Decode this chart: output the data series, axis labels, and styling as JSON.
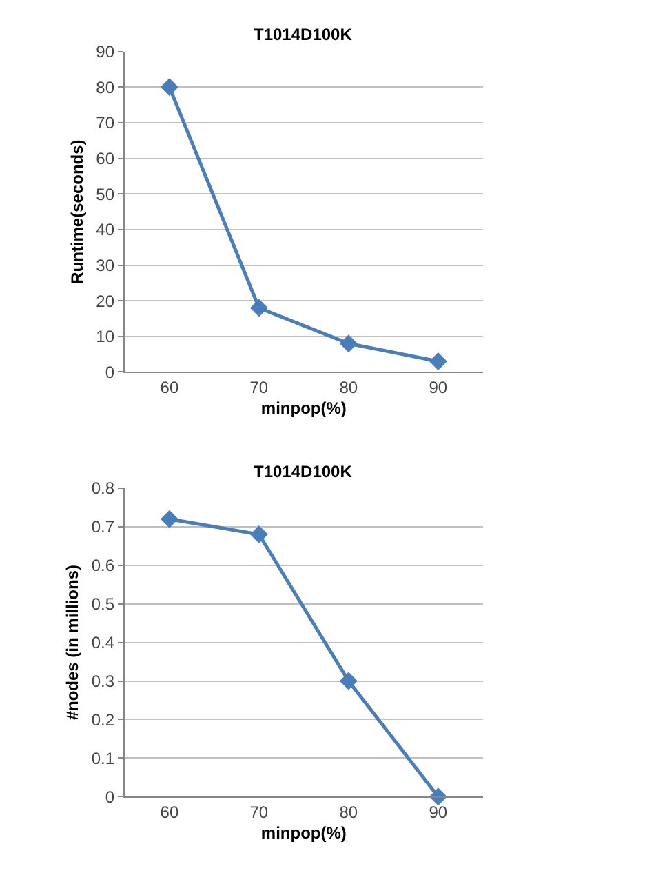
{
  "chart_data": [
    {
      "type": "line",
      "title": "T1014D100K",
      "xlabel": "minpop(%)",
      "ylabel": "Runtime(seconds)",
      "categories": [
        "60",
        "70",
        "80",
        "90"
      ],
      "series": [
        {
          "color": "#4a7ebb",
          "values": [
            80,
            18,
            8,
            3
          ]
        }
      ],
      "ylim": [
        0,
        90
      ],
      "yticks": [
        0,
        10,
        20,
        30,
        40,
        50,
        60,
        70,
        80,
        90
      ],
      "grid": "y",
      "marker": "diamond",
      "line_style": "solid"
    },
    {
      "type": "line",
      "title": "T1014D100K",
      "xlabel": "minpop(%)",
      "ylabel": "#nodes (in millions)",
      "categories": [
        "60",
        "70",
        "80",
        "90"
      ],
      "series": [
        {
          "color": "#4a7ebb",
          "values": [
            0.72,
            0.68,
            0.3,
            0
          ]
        }
      ],
      "ylim": [
        0,
        0.8
      ],
      "yticks": [
        0,
        0.1,
        0.2,
        0.3,
        0.4,
        0.5,
        0.6,
        0.7,
        0.8
      ],
      "grid": "y",
      "marker": "diamond",
      "line_style": "solid"
    }
  ]
}
